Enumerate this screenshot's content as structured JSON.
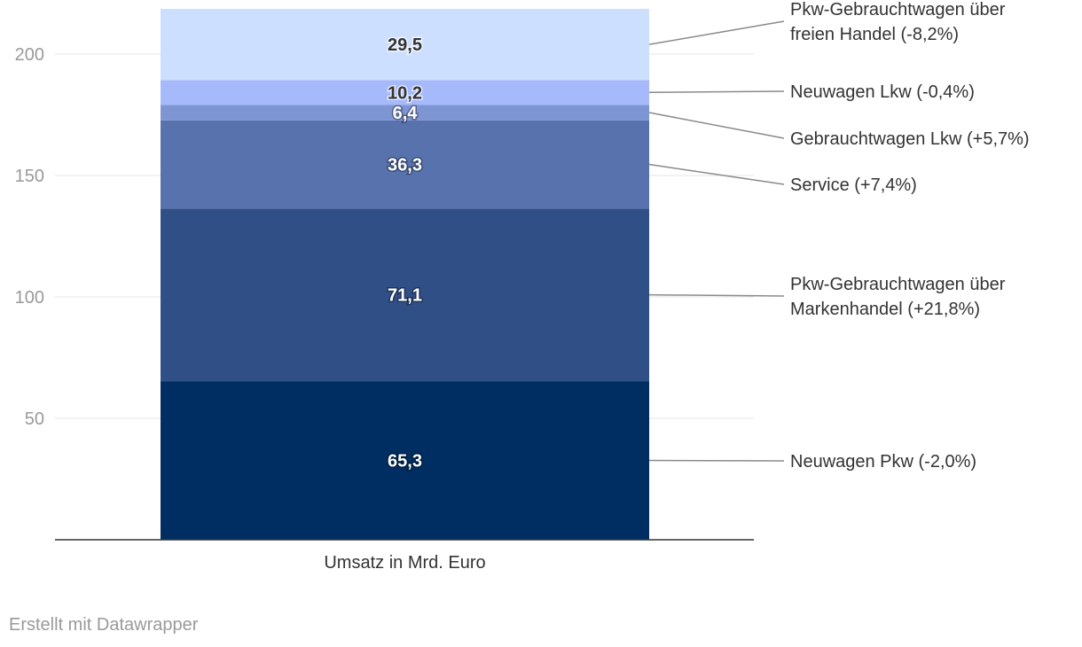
{
  "chart_data": {
    "type": "bar",
    "stacked": true,
    "categories": [
      "Umsatz in Mrd. Euro"
    ],
    "xlabel": "",
    "ylabel": "",
    "ylim": [
      0,
      218
    ],
    "yticks": [
      50,
      100,
      150,
      200
    ],
    "grid": true,
    "series": [
      {
        "name": "Neuwagen Pkw (-2,0%)",
        "label_lines": [
          "Neuwagen Pkw (-2,0%)"
        ],
        "values": [
          65.3
        ],
        "value_label": "65,3",
        "color": "#002e62",
        "label_color": "#ffffff"
      },
      {
        "name": "Pkw-Gebrauchtwagen über Markenhandel (+21,8%)",
        "label_lines": [
          "Pkw-Gebrauchtwagen über",
          "Markenhandel (+21,8%)"
        ],
        "values": [
          71.1
        ],
        "value_label": "71,1",
        "color": "#304f87",
        "label_color": "#ffffff"
      },
      {
        "name": "Service (+7,4%)",
        "label_lines": [
          "Service (+7,4%)"
        ],
        "values": [
          36.3
        ],
        "value_label": "36,3",
        "color": "#5772ad",
        "label_color": "#ffffff"
      },
      {
        "name": "Gebrauchtwagen Lkw (+5,7%)",
        "label_lines": [
          "Gebrauchtwagen Lkw (+5,7%)"
        ],
        "values": [
          6.4
        ],
        "value_label": "6,4",
        "color": "#7e95d4",
        "label_color": "#ffffff"
      },
      {
        "name": "Neuwagen Lkw (-0,4%)",
        "label_lines": [
          "Neuwagen Lkw (-0,4%)"
        ],
        "values": [
          10.2
        ],
        "value_label": "10,2",
        "color": "#a5b9fb",
        "label_color": "#333333"
      },
      {
        "name": "Pkw-Gebrauchtwagen über freien Handel (-8,2%)",
        "label_lines": [
          "Pkw-Gebrauchtwagen über",
          "freien Handel (-8,2%)"
        ],
        "values": [
          29.5
        ],
        "value_label": "29,5",
        "color": "#cddfff",
        "label_color": "#333333"
      }
    ]
  },
  "footer": {
    "credit": "Erstellt mit Datawrapper"
  }
}
